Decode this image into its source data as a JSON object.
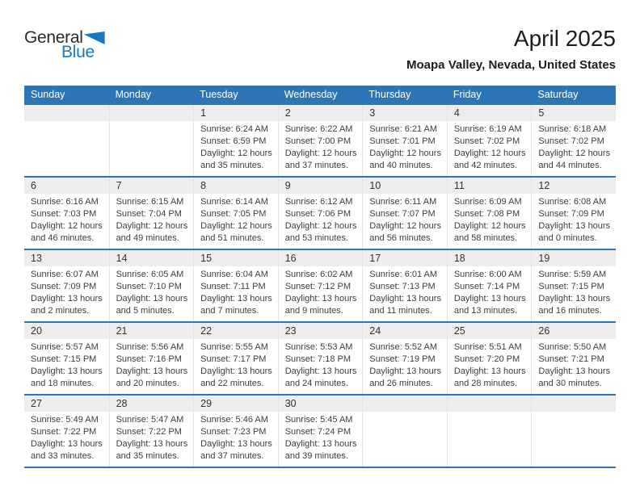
{
  "logo": {
    "general": "General",
    "blue": "Blue"
  },
  "header": {
    "title": "April 2025",
    "subtitle": "Moapa Valley, Nevada, United States"
  },
  "weekdays": [
    "Sunday",
    "Monday",
    "Tuesday",
    "Wednesday",
    "Thursday",
    "Friday",
    "Saturday"
  ],
  "weeks": [
    [
      null,
      null,
      {
        "day": "1",
        "sunrise": "Sunrise: 6:24 AM",
        "sunset": "Sunset: 6:59 PM",
        "daylight": [
          "Daylight: 12 hours",
          "and 35 minutes."
        ]
      },
      {
        "day": "2",
        "sunrise": "Sunrise: 6:22 AM",
        "sunset": "Sunset: 7:00 PM",
        "daylight": [
          "Daylight: 12 hours",
          "and 37 minutes."
        ]
      },
      {
        "day": "3",
        "sunrise": "Sunrise: 6:21 AM",
        "sunset": "Sunset: 7:01 PM",
        "daylight": [
          "Daylight: 12 hours",
          "and 40 minutes."
        ]
      },
      {
        "day": "4",
        "sunrise": "Sunrise: 6:19 AM",
        "sunset": "Sunset: 7:02 PM",
        "daylight": [
          "Daylight: 12 hours",
          "and 42 minutes."
        ]
      },
      {
        "day": "5",
        "sunrise": "Sunrise: 6:18 AM",
        "sunset": "Sunset: 7:02 PM",
        "daylight": [
          "Daylight: 12 hours",
          "and 44 minutes."
        ]
      }
    ],
    [
      {
        "day": "6",
        "sunrise": "Sunrise: 6:16 AM",
        "sunset": "Sunset: 7:03 PM",
        "daylight": [
          "Daylight: 12 hours",
          "and 46 minutes."
        ]
      },
      {
        "day": "7",
        "sunrise": "Sunrise: 6:15 AM",
        "sunset": "Sunset: 7:04 PM",
        "daylight": [
          "Daylight: 12 hours",
          "and 49 minutes."
        ]
      },
      {
        "day": "8",
        "sunrise": "Sunrise: 6:14 AM",
        "sunset": "Sunset: 7:05 PM",
        "daylight": [
          "Daylight: 12 hours",
          "and 51 minutes."
        ]
      },
      {
        "day": "9",
        "sunrise": "Sunrise: 6:12 AM",
        "sunset": "Sunset: 7:06 PM",
        "daylight": [
          "Daylight: 12 hours",
          "and 53 minutes."
        ]
      },
      {
        "day": "10",
        "sunrise": "Sunrise: 6:11 AM",
        "sunset": "Sunset: 7:07 PM",
        "daylight": [
          "Daylight: 12 hours",
          "and 56 minutes."
        ]
      },
      {
        "day": "11",
        "sunrise": "Sunrise: 6:09 AM",
        "sunset": "Sunset: 7:08 PM",
        "daylight": [
          "Daylight: 12 hours",
          "and 58 minutes."
        ]
      },
      {
        "day": "12",
        "sunrise": "Sunrise: 6:08 AM",
        "sunset": "Sunset: 7:09 PM",
        "daylight": [
          "Daylight: 13 hours",
          "and 0 minutes."
        ]
      }
    ],
    [
      {
        "day": "13",
        "sunrise": "Sunrise: 6:07 AM",
        "sunset": "Sunset: 7:09 PM",
        "daylight": [
          "Daylight: 13 hours",
          "and 2 minutes."
        ]
      },
      {
        "day": "14",
        "sunrise": "Sunrise: 6:05 AM",
        "sunset": "Sunset: 7:10 PM",
        "daylight": [
          "Daylight: 13 hours",
          "and 5 minutes."
        ]
      },
      {
        "day": "15",
        "sunrise": "Sunrise: 6:04 AM",
        "sunset": "Sunset: 7:11 PM",
        "daylight": [
          "Daylight: 13 hours",
          "and 7 minutes."
        ]
      },
      {
        "day": "16",
        "sunrise": "Sunrise: 6:02 AM",
        "sunset": "Sunset: 7:12 PM",
        "daylight": [
          "Daylight: 13 hours",
          "and 9 minutes."
        ]
      },
      {
        "day": "17",
        "sunrise": "Sunrise: 6:01 AM",
        "sunset": "Sunset: 7:13 PM",
        "daylight": [
          "Daylight: 13 hours",
          "and 11 minutes."
        ]
      },
      {
        "day": "18",
        "sunrise": "Sunrise: 6:00 AM",
        "sunset": "Sunset: 7:14 PM",
        "daylight": [
          "Daylight: 13 hours",
          "and 13 minutes."
        ]
      },
      {
        "day": "19",
        "sunrise": "Sunrise: 5:59 AM",
        "sunset": "Sunset: 7:15 PM",
        "daylight": [
          "Daylight: 13 hours",
          "and 16 minutes."
        ]
      }
    ],
    [
      {
        "day": "20",
        "sunrise": "Sunrise: 5:57 AM",
        "sunset": "Sunset: 7:15 PM",
        "daylight": [
          "Daylight: 13 hours",
          "and 18 minutes."
        ]
      },
      {
        "day": "21",
        "sunrise": "Sunrise: 5:56 AM",
        "sunset": "Sunset: 7:16 PM",
        "daylight": [
          "Daylight: 13 hours",
          "and 20 minutes."
        ]
      },
      {
        "day": "22",
        "sunrise": "Sunrise: 5:55 AM",
        "sunset": "Sunset: 7:17 PM",
        "daylight": [
          "Daylight: 13 hours",
          "and 22 minutes."
        ]
      },
      {
        "day": "23",
        "sunrise": "Sunrise: 5:53 AM",
        "sunset": "Sunset: 7:18 PM",
        "daylight": [
          "Daylight: 13 hours",
          "and 24 minutes."
        ]
      },
      {
        "day": "24",
        "sunrise": "Sunrise: 5:52 AM",
        "sunset": "Sunset: 7:19 PM",
        "daylight": [
          "Daylight: 13 hours",
          "and 26 minutes."
        ]
      },
      {
        "day": "25",
        "sunrise": "Sunrise: 5:51 AM",
        "sunset": "Sunset: 7:20 PM",
        "daylight": [
          "Daylight: 13 hours",
          "and 28 minutes."
        ]
      },
      {
        "day": "26",
        "sunrise": "Sunrise: 5:50 AM",
        "sunset": "Sunset: 7:21 PM",
        "daylight": [
          "Daylight: 13 hours",
          "and 30 minutes."
        ]
      }
    ],
    [
      {
        "day": "27",
        "sunrise": "Sunrise: 5:49 AM",
        "sunset": "Sunset: 7:22 PM",
        "daylight": [
          "Daylight: 13 hours",
          "and 33 minutes."
        ]
      },
      {
        "day": "28",
        "sunrise": "Sunrise: 5:47 AM",
        "sunset": "Sunset: 7:22 PM",
        "daylight": [
          "Daylight: 13 hours",
          "and 35 minutes."
        ]
      },
      {
        "day": "29",
        "sunrise": "Sunrise: 5:46 AM",
        "sunset": "Sunset: 7:23 PM",
        "daylight": [
          "Daylight: 13 hours",
          "and 37 minutes."
        ]
      },
      {
        "day": "30",
        "sunrise": "Sunrise: 5:45 AM",
        "sunset": "Sunset: 7:24 PM",
        "daylight": [
          "Daylight: 13 hours",
          "and 39 minutes."
        ]
      },
      null,
      null,
      null
    ]
  ],
  "colors": {
    "accent_blue": "#2E75B6",
    "logo_blue": "#1878C4",
    "band_gray": "#EDEDED"
  }
}
